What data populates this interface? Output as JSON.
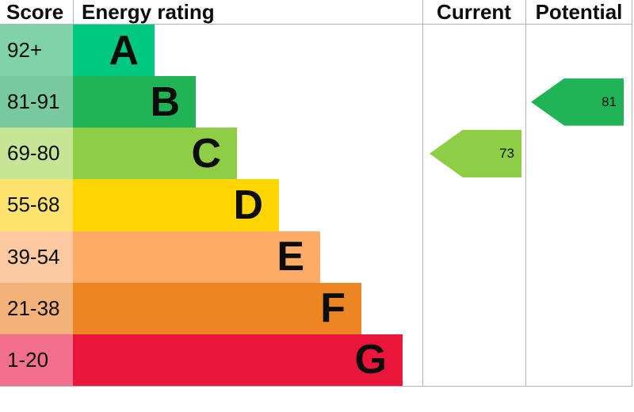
{
  "header": {
    "score": "Score",
    "energy_rating": "Energy rating",
    "current": "Current",
    "potential": "Potential"
  },
  "chart_data": {
    "type": "bar",
    "title": "EPC energy efficiency rating chart",
    "bands": [
      {
        "letter": "A",
        "score_range": "92+",
        "color": "#00c781",
        "tint": "#80d2a8"
      },
      {
        "letter": "B",
        "score_range": "81-91",
        "color": "#21b456",
        "tint": "#79c99e"
      },
      {
        "letter": "C",
        "score_range": "69-80",
        "color": "#8dce46",
        "tint": "#c6e695"
      },
      {
        "letter": "D",
        "score_range": "55-68",
        "color": "#ffd500",
        "tint": "#fce36d"
      },
      {
        "letter": "E",
        "score_range": "39-54",
        "color": "#fcaa65",
        "tint": "#fcc9a0"
      },
      {
        "letter": "F",
        "score_range": "21-38",
        "color": "#ee8523",
        "tint": "#f3b378"
      },
      {
        "letter": "G",
        "score_range": "1-20",
        "color": "#e9153b",
        "tint": "#f2708c"
      }
    ],
    "current": {
      "value": 73,
      "band": "C",
      "color": "#8dce46"
    },
    "potential": {
      "value": 81,
      "band": "B",
      "color": "#21b456"
    },
    "layout_hints": {
      "orientation": "horizontal-bars-increasing-downwards",
      "columns": [
        "Score",
        "Energy rating",
        "Current",
        "Potential"
      ]
    }
  },
  "colors": {
    "border": "#b1b4b6",
    "text": "#0b0c0c",
    "background": "#ffffff"
  }
}
